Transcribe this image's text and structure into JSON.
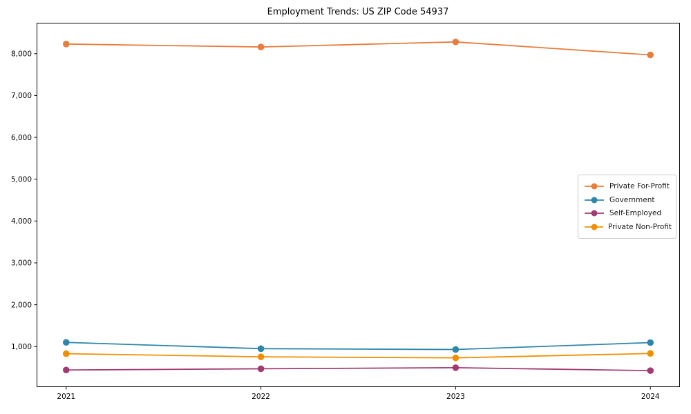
{
  "title": "Employment Trends: US ZIP Code 54937",
  "chart_data": {
    "type": "line",
    "title": "Employment Trends: US ZIP Code 54937",
    "xlabel": "",
    "ylabel": "",
    "x": [
      2021,
      2022,
      2023,
      2024
    ],
    "categories": [
      "2021",
      "2022",
      "2023",
      "2024"
    ],
    "series": [
      {
        "name": "Private For-Profit",
        "color": "#e87d3c",
        "values": [
          8230,
          8160,
          8280,
          7970
        ]
      },
      {
        "name": "Government",
        "color": "#2e86ab",
        "values": [
          1100,
          950,
          930,
          1095
        ]
      },
      {
        "name": "Self-Employed",
        "color": "#a23b72",
        "values": [
          440,
          470,
          495,
          425
        ]
      },
      {
        "name": "Private Non-Profit",
        "color": "#f18f01",
        "values": [
          830,
          755,
          730,
          835
        ]
      }
    ],
    "xlim": [
      2020.85,
      2024.15
    ],
    "ylim": [
      40,
      8730
    ],
    "yticks": [
      1000,
      2000,
      3000,
      4000,
      5000,
      6000,
      7000,
      8000
    ],
    "ytick_labels": [
      "1,000",
      "2,000",
      "3,000",
      "4,000",
      "5,000",
      "6,000",
      "7,000",
      "8,000"
    ],
    "grid": false,
    "legend_position": "center right",
    "marker": "circle"
  }
}
